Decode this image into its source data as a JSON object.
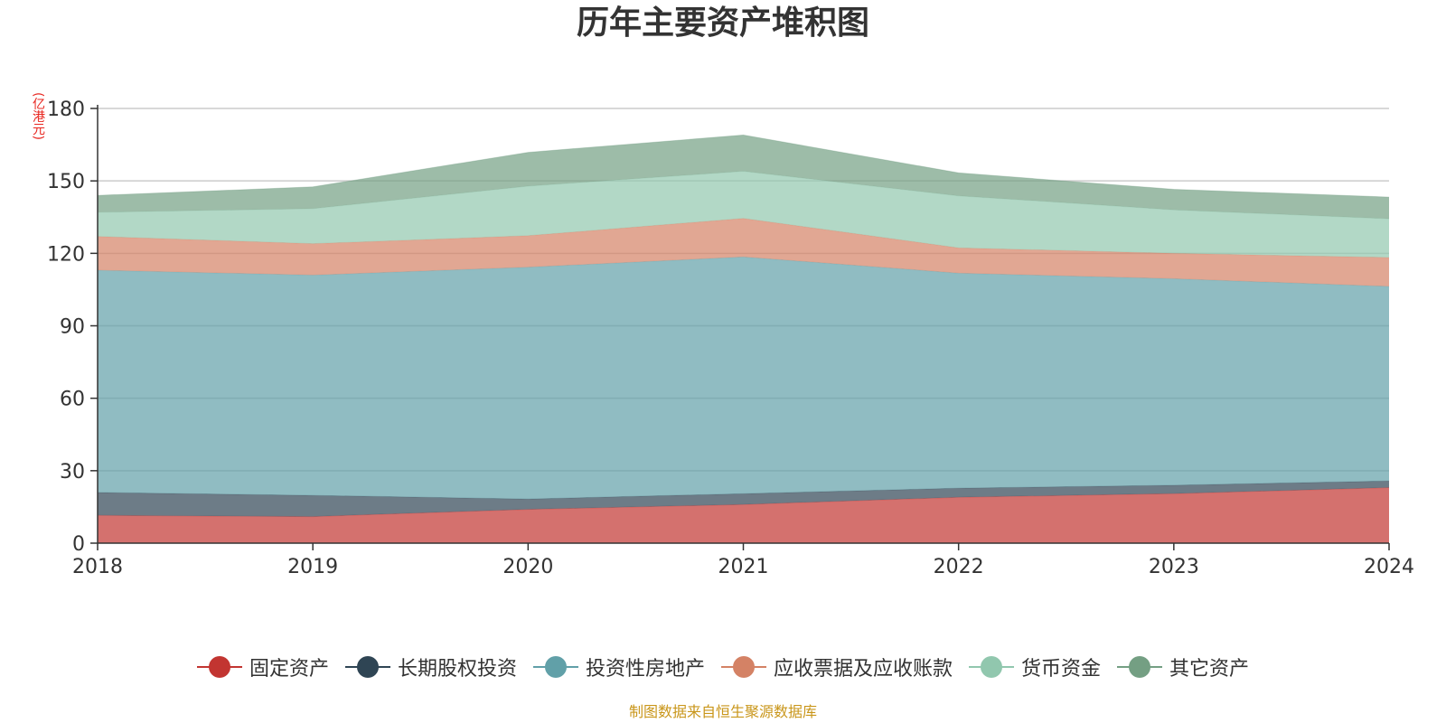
{
  "chart_data": {
    "type": "area",
    "stacked": true,
    "title": "历年主要资产堆积图",
    "ylabel": "(亿港元)",
    "x": [
      "2018",
      "2019",
      "2020",
      "2021",
      "2022",
      "2023",
      "2024"
    ],
    "ylim": [
      0,
      180
    ],
    "yticks": [
      0,
      30,
      60,
      90,
      120,
      150,
      180
    ],
    "grid": true,
    "legend_position": "bottom",
    "series": [
      {
        "name": "固定资产",
        "color": "#c23531",
        "values": [
          11.5,
          11.0,
          14.0,
          16.0,
          19.0,
          20.5,
          23.0
        ]
      },
      {
        "name": "长期股权投资",
        "color": "#2f4554",
        "values": [
          9.5,
          8.8,
          4.3,
          4.5,
          3.8,
          3.5,
          2.8
        ]
      },
      {
        "name": "投资性房地产",
        "color": "#61a0a8",
        "values": [
          92.0,
          91.2,
          96.0,
          98.0,
          89.0,
          85.5,
          80.5
        ]
      },
      {
        "name": "应收票据及应收账款",
        "color": "#d48265",
        "values": [
          14.0,
          13.0,
          13.0,
          16.0,
          10.5,
          10.5,
          12.0
        ]
      },
      {
        "name": "货币资金",
        "color": "#91c7ae",
        "values": [
          10.0,
          14.5,
          20.5,
          19.5,
          21.5,
          18.0,
          16.0
        ]
      },
      {
        "name": "其它资产",
        "color": "#749f83",
        "values": [
          7.0,
          9.0,
          14.0,
          15.0,
          9.5,
          8.5,
          9.0
        ]
      }
    ]
  },
  "source_note": "制图数据来自恒生聚源数据库"
}
